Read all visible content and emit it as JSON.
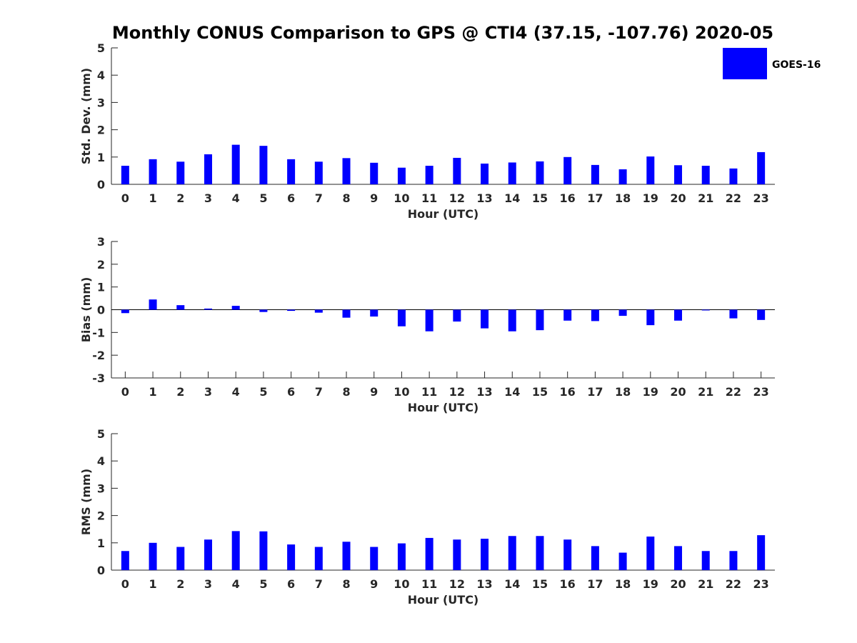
{
  "chart_data": {
    "title": "Monthly CONUS Comparison to GPS @ CTI4 (37.15, -107.76) 2020-05",
    "legend": {
      "label": "GOES-16",
      "color": "#0000ff",
      "placement": "top-right"
    },
    "categories": [
      0,
      1,
      2,
      3,
      4,
      5,
      6,
      7,
      8,
      9,
      10,
      11,
      12,
      13,
      14,
      15,
      16,
      17,
      18,
      19,
      20,
      21,
      22,
      23
    ],
    "panels": [
      {
        "type": "bar",
        "xlabel": "Hour (UTC)",
        "ylabel": "Std. Dev. (mm)",
        "ylim": [
          0,
          5
        ],
        "yticks": [
          0,
          1,
          2,
          3,
          4,
          5
        ],
        "values": [
          0.68,
          0.92,
          0.83,
          1.1,
          1.45,
          1.41,
          0.92,
          0.83,
          0.96,
          0.79,
          0.61,
          0.68,
          0.97,
          0.76,
          0.8,
          0.84,
          1.0,
          0.71,
          0.55,
          1.02,
          0.7,
          0.68,
          0.58,
          1.18
        ]
      },
      {
        "type": "bar",
        "xlabel": "Hour (UTC)",
        "ylabel": "Bias (mm)",
        "ylim": [
          -3,
          3
        ],
        "yticks": [
          -3,
          -2,
          -1,
          0,
          1,
          2,
          3
        ],
        "zero_line": true,
        "values": [
          -0.15,
          0.45,
          0.2,
          0.05,
          0.17,
          -0.1,
          -0.05,
          -0.13,
          -0.35,
          -0.3,
          -0.73,
          -0.95,
          -0.52,
          -0.82,
          -0.95,
          -0.9,
          -0.48,
          -0.5,
          -0.27,
          -0.68,
          -0.48,
          -0.03,
          -0.38,
          -0.45
        ]
      },
      {
        "type": "bar",
        "xlabel": "Hour (UTC)",
        "ylabel": "RMS (mm)",
        "ylim": [
          0,
          5
        ],
        "yticks": [
          0,
          1,
          2,
          3,
          4,
          5
        ],
        "values": [
          0.7,
          1.0,
          0.85,
          1.12,
          1.43,
          1.42,
          0.94,
          0.85,
          1.04,
          0.85,
          0.98,
          1.18,
          1.12,
          1.15,
          1.25,
          1.25,
          1.12,
          0.88,
          0.64,
          1.23,
          0.88,
          0.7,
          0.7,
          1.28
        ]
      }
    ]
  }
}
